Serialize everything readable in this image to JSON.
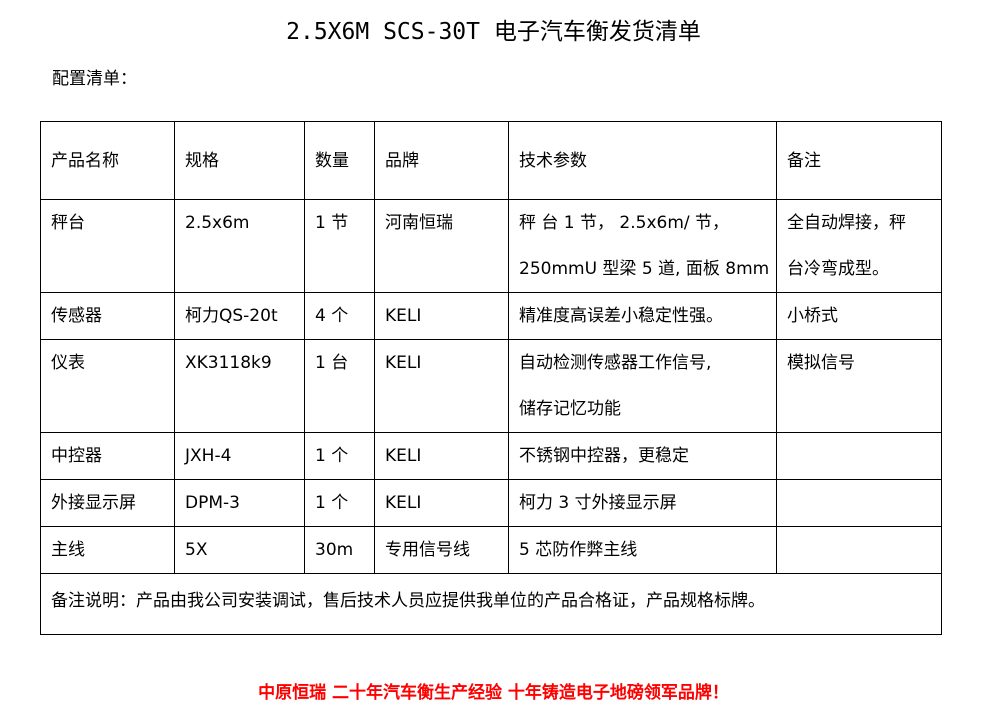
{
  "title": "2.5X6M SCS-30T 电子汽车衡发货清单",
  "subtitle": "配置清单：",
  "headers": [
    "产品名称",
    "规格",
    "数量",
    "品牌",
    "技术参数",
    "备注"
  ],
  "rows": [
    {
      "name": "秤台",
      "spec": "2.5x6m",
      "qty": "1 节",
      "brand": "河南恒瑞",
      "tech": [
        "秤 台 1 节， 2.5x6m/ 节，",
        "250mmU 型梁 5 道, 面板 8mm"
      ],
      "remark": [
        "全自动焊接，秤",
        "台冷弯成型。"
      ]
    },
    {
      "name": "传感器",
      "spec": "柯力QS-20t",
      "qty": "4 个",
      "brand": "KELI",
      "tech": [
        "精准度高误差小稳定性强。"
      ],
      "remark": [
        "小桥式"
      ]
    },
    {
      "name": "仪表",
      "spec": "XK3118k9",
      "qty": "1 台",
      "brand": "KELI",
      "tech": [
        "自动检测传感器工作信号,",
        "储存记忆功能"
      ],
      "remark": [
        "模拟信号"
      ]
    },
    {
      "name": "中控器",
      "spec": "JXH-4",
      "qty": "1 个",
      "brand": "KELI",
      "tech": [
        "不锈钢中控器，更稳定"
      ],
      "remark": [
        ""
      ]
    },
    {
      "name": "外接显示屏",
      "spec": "DPM-3",
      "qty": "1 个",
      "brand": "KELI",
      "tech": [
        "柯力 3 寸外接显示屏"
      ],
      "remark": [
        ""
      ]
    },
    {
      "name": "主线",
      "spec": "5X",
      "qty": "30m",
      "brand": "专用信号线",
      "tech": [
        "5 芯防作弊主线"
      ],
      "remark": [
        ""
      ]
    }
  ],
  "note": "备注说明：产品由我公司安装调试，售后技术人员应提供我单位的产品合格证，产品规格标牌。",
  "footer": "中原恒瑞 二十年汽车衡生产经验 十年铸造电子地磅领军品牌！",
  "colors": {
    "footer": "#ff0000"
  }
}
